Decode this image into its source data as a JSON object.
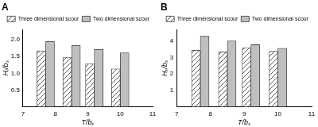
{
  "chart_data": [
    {
      "type": "bar",
      "title": "A",
      "x_label": "T/bₛ",
      "y_label": "Hₗ/bₛ",
      "x": [
        7.7,
        8.5,
        9.2,
        10.0
      ],
      "series": [
        {
          "name": "Three dimensional scour",
          "color": "#ffffff",
          "values": [
            1.67,
            1.47,
            1.28,
            1.13
          ]
        },
        {
          "name": "Two dimensional scour",
          "color": "#bfbfbf",
          "values": [
            1.95,
            1.83,
            1.71,
            1.61
          ]
        }
      ],
      "xlim": [
        7,
        11
      ],
      "xticks": [
        7,
        8,
        9,
        10,
        11
      ],
      "ylim": [
        0,
        2.3
      ],
      "yticks": [
        0.5,
        {
          "value": 1.0,
          "label": "1.0"
        },
        1.5,
        {
          "value": 2.0,
          "label": "2.0"
        }
      ],
      "grid": false,
      "legend": "upper right"
    },
    {
      "type": "bar",
      "title": "B",
      "x_label": "T/bₛ",
      "y_label": "Hₛ/bₛ",
      "x": [
        7.7,
        8.5,
        9.2,
        10.0
      ],
      "series": [
        {
          "name": "Three dimensional scour",
          "color": "#ffffff",
          "values": [
            3.45,
            3.35,
            3.6,
            3.38
          ]
        },
        {
          "name": "Two dimensional scour",
          "color": "#bfbfbf",
          "values": [
            4.3,
            4.02,
            3.78,
            3.57
          ]
        }
      ],
      "xlim": [
        7,
        11
      ],
      "xticks": [
        7,
        8,
        9,
        10,
        11
      ],
      "ylim": [
        0,
        4.7
      ],
      "yticks": [
        1,
        2,
        3,
        4
      ],
      "grid": false,
      "legend": "upper right"
    }
  ]
}
